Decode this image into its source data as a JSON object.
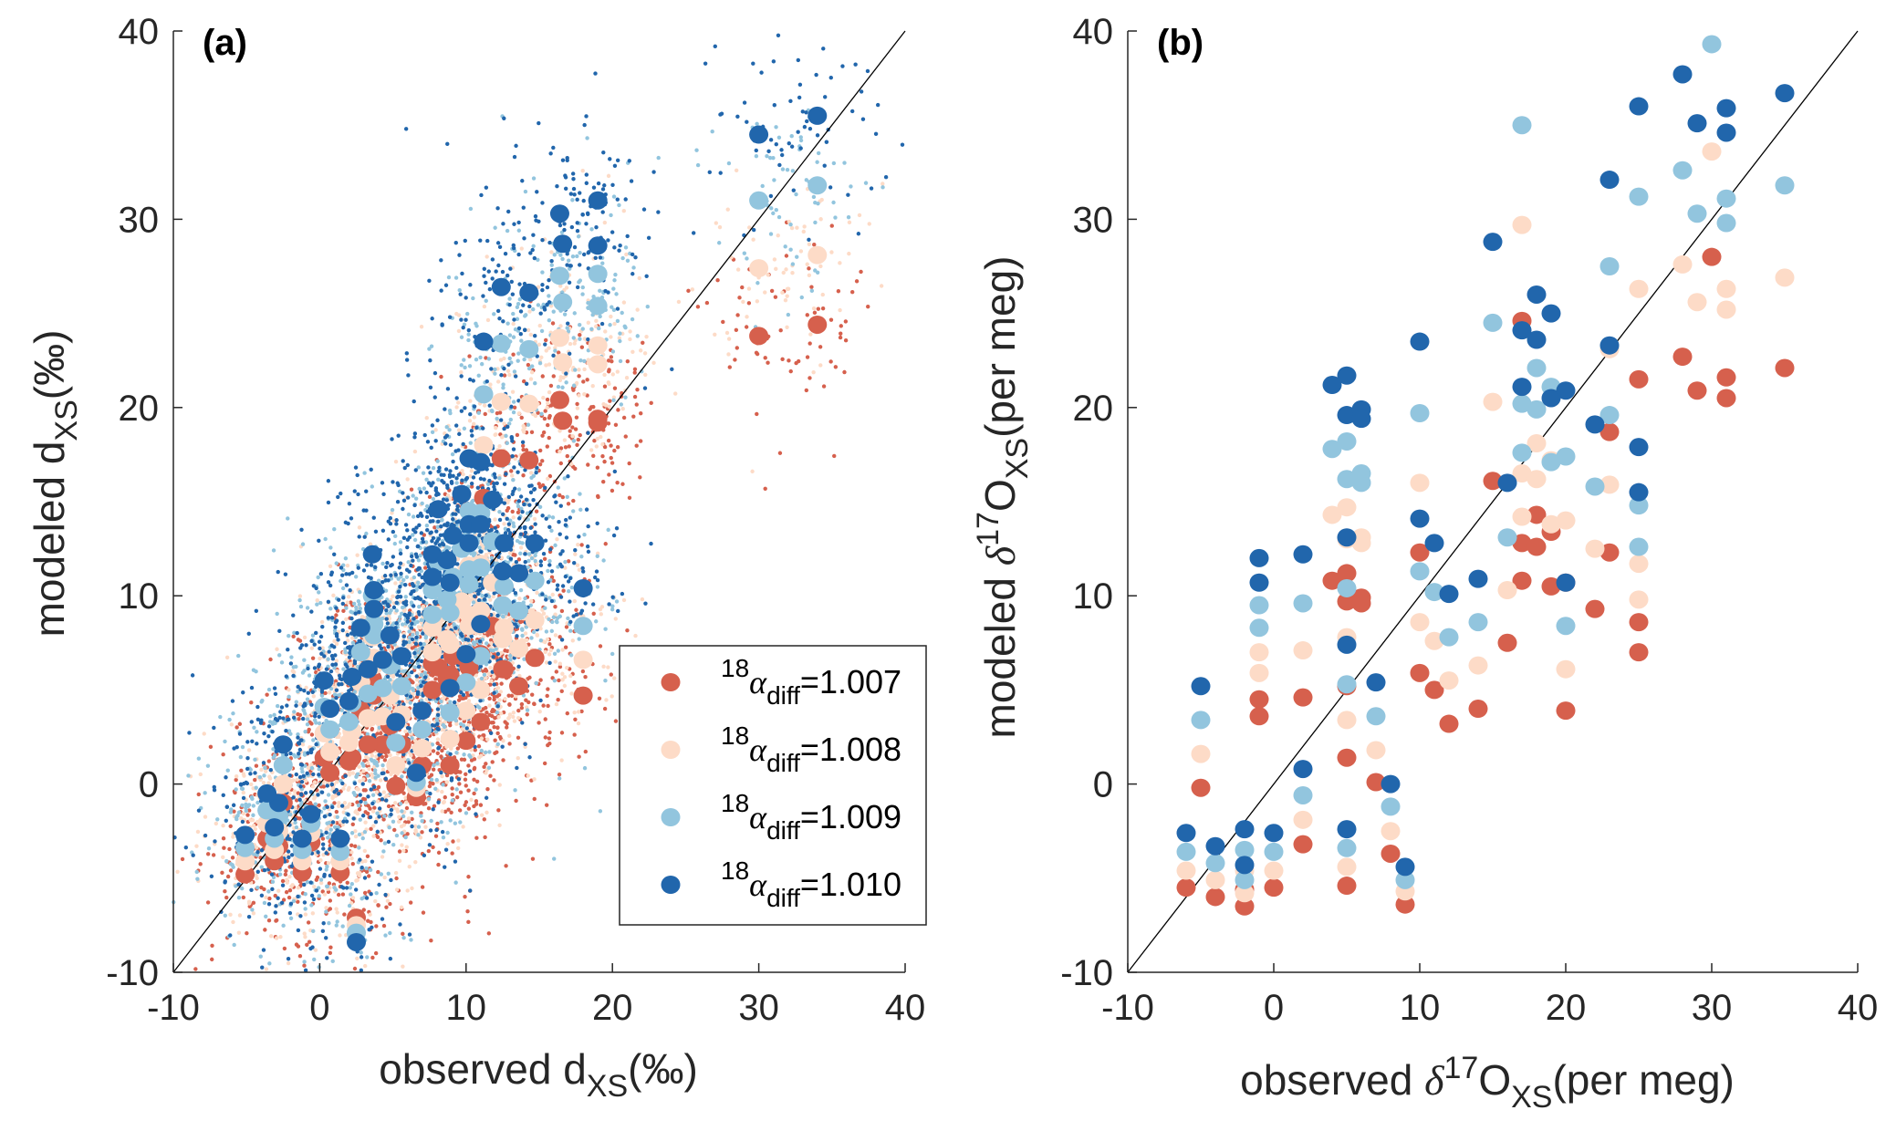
{
  "colors": {
    "r1007": "#d6604d",
    "r1008": "#fddbc7",
    "r1009": "#92c5de",
    "r1010": "#2166ac"
  },
  "chart_data": [
    {
      "type": "scatter",
      "panel_label": "(a)",
      "xlabel": {
        "main": "observed d",
        "sub": "XS",
        "unit": "(‰)"
      },
      "ylabel": {
        "main": "modeled d",
        "sub": "XS",
        "unit": "(‰)"
      },
      "xlim": [
        -10,
        40
      ],
      "ylim": [
        -10,
        40
      ],
      "xticks": [
        "-10",
        "0",
        "10",
        "20",
        "30",
        "40"
      ],
      "yticks": [
        "-10",
        "0",
        "10",
        "20",
        "30",
        "40"
      ],
      "one_to_one_line": true,
      "grid": false,
      "legend_position": "bottom-right",
      "legend": [
        {
          "sup": "18",
          "alpha": "α",
          "sub": "diff",
          "value": "=1.007"
        },
        {
          "sup": "18",
          "alpha": "α",
          "sub": "diff",
          "value": "=1.008"
        },
        {
          "sup": "18",
          "alpha": "α",
          "sub": "diff",
          "value": "=1.009"
        },
        {
          "sup": "18",
          "alpha": "α",
          "sub": "diff",
          "value": "=1.010"
        }
      ],
      "x": [
        34,
        30,
        18,
        19,
        19,
        16.4,
        16.6,
        14.3,
        12.4,
        11.2,
        10.2,
        11,
        11.8,
        9.7,
        8.1,
        9.1,
        10.2,
        10.2,
        11,
        12.6,
        14.7,
        13.6,
        12.5,
        7.7,
        8.7,
        7.7,
        8.9,
        11,
        10,
        8.9,
        7,
        6.6,
        5.2,
        5.6,
        4.8,
        4.3,
        3.3,
        3.7,
        3.7,
        3.6,
        2.8,
        2.2,
        2.0,
        0.7,
        0.3,
        2.5,
        1.4,
        -0.6,
        -1.2,
        -2.5,
        -2.8,
        -3.1,
        -3.6,
        -5.1
      ],
      "series": [
        {
          "name": "18αdiff=1.007",
          "color": "#d6604d",
          "values": [
            24.4,
            23.8,
            4.7,
            19.4,
            19.2,
            20.4,
            19.3,
            17.2,
            17.3,
            15.2,
            8.7,
            9.0,
            8.4,
            6.8,
            6.2,
            6.8,
            6.6,
            6.2,
            6.9,
            6.1,
            6.7,
            5.2,
            6.1,
            6.4,
            5.6,
            5.0,
            5.8,
            3.3,
            2.3,
            1.0,
            1.0,
            -0.7,
            -0.1,
            2.1,
            3.1,
            2.1,
            2.1,
            4.9,
            4.7,
            5.6,
            3.9,
            1.4,
            1.2,
            0.6,
            1.4,
            -7.1,
            -4.7,
            -3.1,
            -4.7,
            -1.0,
            -3.3,
            -4.1,
            -2.9,
            -4.8
          ]
        },
        {
          "name": "18αdiff=1.008",
          "color": "#fddbc7",
          "values": [
            28.1,
            27.4,
            6.6,
            23.3,
            22.3,
            23.7,
            22.4,
            20.2,
            20.3,
            18.0,
            11.6,
            11.7,
            10.7,
            9.7,
            9.0,
            9.1,
            9.0,
            8.4,
            9.2,
            8.3,
            8.7,
            7.2,
            7.7,
            8.3,
            7.7,
            7.0,
            7.4,
            5.0,
            3.9,
            2.4,
            1.9,
            -0.2,
            1.0,
            3.7,
            4.7,
            3.6,
            3.5,
            6.7,
            6.3,
            7.8,
            5.4,
            2.8,
            2.2,
            1.7,
            2.7,
            -7.5,
            -4.1,
            -2.6,
            -4.1,
            0.0,
            -2.5,
            -3.5,
            -2.1,
            -4.1
          ]
        },
        {
          "name": "18αdiff=1.009",
          "color": "#92c5de",
          "values": [
            31.8,
            31.0,
            8.4,
            27.1,
            25.4,
            27.0,
            25.6,
            23.1,
            23.4,
            20.7,
            14.5,
            14.4,
            12.9,
            12.5,
            11.8,
            11.0,
            11.4,
            10.6,
            11.5,
            10.5,
            10.8,
            9.2,
            9.5,
            10.3,
            9.8,
            9.0,
            9.1,
            6.8,
            5.4,
            3.8,
            2.9,
            0.1,
            2.2,
            5.2,
            6.3,
            5.1,
            4.8,
            8.5,
            7.9,
            10.0,
            7.0,
            4.3,
            3.3,
            2.9,
            4.1,
            -7.9,
            -3.6,
            -2.1,
            -3.5,
            1.0,
            -1.7,
            -2.9,
            -1.4,
            -3.4
          ]
        },
        {
          "name": "18αdiff=1.010",
          "color": "#2166ac",
          "values": [
            35.5,
            34.5,
            10.4,
            31.0,
            28.6,
            30.3,
            28.7,
            26.1,
            26.4,
            23.5,
            17.3,
            17.1,
            15.1,
            15.4,
            14.6,
            13.2,
            13.8,
            12.8,
            13.8,
            12.8,
            12.8,
            11.2,
            11.3,
            12.2,
            11.9,
            11.0,
            10.7,
            8.5,
            6.9,
            5.1,
            3.9,
            0.6,
            3.3,
            6.8,
            7.9,
            6.6,
            6.1,
            10.3,
            9.3,
            12.2,
            8.3,
            5.7,
            4.4,
            4.0,
            5.5,
            -8.4,
            -2.9,
            -1.6,
            -2.9,
            2.1,
            -1.0,
            -2.3,
            -0.5,
            -2.7
          ]
        }
      ]
    },
    {
      "type": "scatter",
      "panel_label": "(b)",
      "xlabel": {
        "main": "observed ",
        "delta": "δ",
        "sup": "17",
        "o": "O",
        "sub": "XS",
        "unit": "(per meg)"
      },
      "ylabel": {
        "main": "modeled ",
        "delta": "δ",
        "sup": "17",
        "o": "O",
        "sub": "XS",
        "unit": "(per meg)"
      },
      "xlim": [
        -10,
        40
      ],
      "ylim": [
        -10,
        40
      ],
      "xticks": [
        "-10",
        "0",
        "10",
        "20",
        "30",
        "40"
      ],
      "yticks": [
        "-10",
        "0",
        "10",
        "20",
        "30",
        "40"
      ],
      "one_to_one_line": true,
      "grid": false,
      "x": [
        -6,
        -5,
        -4,
        -2,
        -2,
        -1,
        -1,
        0,
        2,
        2,
        4,
        5,
        5,
        5,
        5,
        5,
        6,
        6,
        7,
        8,
        9,
        10,
        10,
        11,
        12,
        14,
        15,
        16,
        17,
        17,
        17,
        18,
        18,
        19,
        19,
        20,
        20,
        22,
        23,
        23,
        25,
        25,
        25,
        28,
        29,
        30,
        31,
        31,
        35
      ],
      "series": [
        {
          "color": "#d6604d",
          "values": [
            -5.5,
            -0.2,
            -6.0,
            -5.6,
            -6.5,
            4.5,
            3.6,
            -5.5,
            4.6,
            -3.2,
            10.8,
            11.2,
            9.7,
            5.2,
            1.4,
            -5.4,
            9.9,
            9.6,
            0.1,
            -3.7,
            -6.4,
            12.3,
            5.9,
            5.0,
            3.2,
            4.0,
            16.1,
            7.5,
            24.6,
            12.8,
            10.8,
            14.3,
            12.6,
            13.4,
            10.5,
            10.7,
            3.9,
            9.3,
            18.7,
            12.3,
            21.5,
            8.6,
            7.0,
            22.7,
            20.9,
            28.0,
            21.6,
            20.5,
            22.1
          ]
        },
        {
          "color": "#fddbc7",
          "values": [
            -4.6,
            1.6,
            -5.1,
            -4.6,
            -5.8,
            7.0,
            5.9,
            -4.6,
            7.1,
            -1.9,
            14.3,
            14.7,
            13.0,
            7.8,
            3.4,
            -4.4,
            13.1,
            12.8,
            1.8,
            -2.5,
            -5.7,
            16.0,
            8.6,
            7.6,
            5.5,
            6.3,
            20.3,
            10.3,
            29.7,
            16.5,
            14.2,
            18.1,
            16.2,
            17.2,
            13.8,
            14.0,
            6.1,
            12.5,
            23.1,
            15.9,
            26.3,
            11.7,
            9.8,
            27.6,
            25.6,
            33.6,
            26.3,
            25.2,
            26.9
          ]
        },
        {
          "color": "#92c5de",
          "values": [
            -3.6,
            3.4,
            -4.2,
            -3.5,
            -5.1,
            9.5,
            8.3,
            -3.6,
            9.6,
            -0.6,
            17.8,
            18.2,
            16.2,
            10.4,
            5.3,
            -3.4,
            16.5,
            16.0,
            3.6,
            -1.2,
            -5.1,
            19.7,
            11.3,
            10.2,
            7.8,
            8.6,
            24.5,
            13.1,
            35.0,
            20.2,
            17.6,
            22.1,
            19.9,
            21.1,
            17.1,
            17.4,
            8.4,
            15.8,
            27.5,
            19.6,
            31.2,
            14.8,
            12.6,
            32.6,
            30.3,
            39.3,
            31.1,
            29.8,
            31.8
          ]
        },
        {
          "color": "#2166ac",
          "values": [
            -2.6,
            5.2,
            -3.3,
            -2.4,
            -4.3,
            12.0,
            10.7,
            -2.6,
            12.2,
            0.8,
            21.2,
            21.7,
            19.6,
            13.1,
            7.4,
            -2.4,
            19.9,
            19.4,
            5.4,
            0.0,
            -4.4,
            23.5,
            14.1,
            12.8,
            10.1,
            10.9,
            28.8,
            16.0,
            null,
            24.1,
            21.1,
            26.0,
            23.6,
            25.0,
            20.5,
            20.9,
            10.7,
            19.1,
            32.1,
            23.3,
            36.0,
            17.9,
            15.5,
            37.7,
            35.1,
            null,
            35.9,
            34.6,
            36.7
          ]
        }
      ]
    }
  ]
}
